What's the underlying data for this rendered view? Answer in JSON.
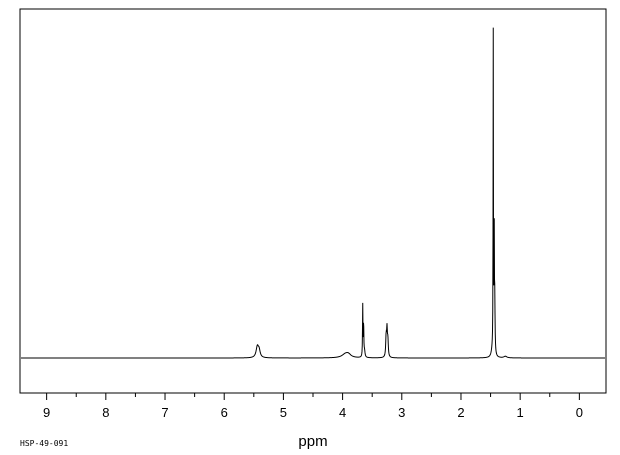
{
  "sample_code": "HSP-49-091",
  "chart_data": {
    "type": "line",
    "title": "",
    "xlabel": "ppm",
    "ylabel": "",
    "xlim": [
      9.45,
      -0.45
    ],
    "x_reversed": true,
    "ylim": [
      0,
      1.0
    ],
    "grid": false,
    "x_ticks": [
      9,
      8,
      7,
      6,
      5,
      4,
      3,
      2,
      1,
      0
    ],
    "x_tick_labels": [
      "9",
      "8",
      "7",
      "6",
      "5",
      "4",
      "3",
      "2",
      "1",
      "0"
    ],
    "peaks": [
      {
        "ppm": 5.44,
        "height": 0.035,
        "width": 0.025
      },
      {
        "ppm": 5.41,
        "height": 0.02,
        "width": 0.02
      },
      {
        "ppm": 3.95,
        "height": 0.012,
        "width": 0.07
      },
      {
        "ppm": 3.9,
        "height": 0.008,
        "width": 0.05
      },
      {
        "ppm": 3.66,
        "height": 0.165,
        "width": 0.004
      },
      {
        "ppm": 3.645,
        "height": 0.11,
        "width": 0.004
      },
      {
        "ppm": 3.63,
        "height": 0.02,
        "width": 0.01
      },
      {
        "ppm": 3.265,
        "height": 0.06,
        "width": 0.008
      },
      {
        "ppm": 3.25,
        "height": 0.085,
        "width": 0.008
      },
      {
        "ppm": 3.235,
        "height": 0.05,
        "width": 0.008
      },
      {
        "ppm": 1.455,
        "height": 1.0,
        "width": 0.003
      },
      {
        "ppm": 1.44,
        "height": 0.5,
        "width": 0.003
      },
      {
        "ppm": 1.43,
        "height": 0.18,
        "width": 0.006
      },
      {
        "ppm": 1.47,
        "height": 0.02,
        "width": 0.02
      },
      {
        "ppm": 1.25,
        "height": 0.005,
        "width": 0.03
      }
    ]
  }
}
